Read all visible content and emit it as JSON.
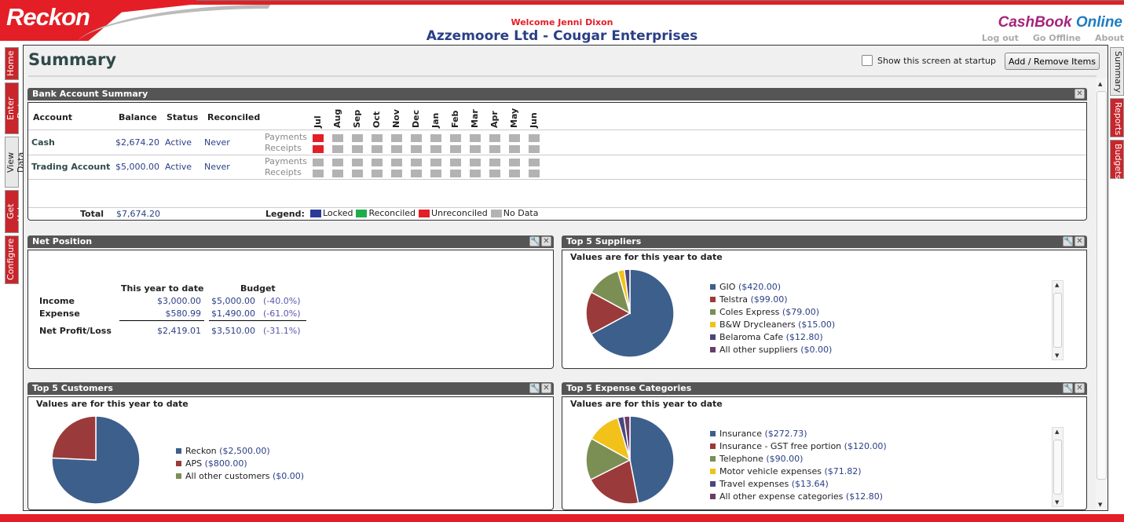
{
  "header": {
    "logo": "Reckon",
    "welcome": "Welcome Jenni Dixon",
    "company": "Azzemoore Ltd - Cougar Enterprises",
    "product": "CashBook Online",
    "links": [
      "Log out",
      "Go Offline",
      "About"
    ]
  },
  "left_tabs": [
    "Home",
    "Enter Data",
    "View Data",
    "Get Help",
    "Configure"
  ],
  "left_tabs_selected": "View Data",
  "right_tabs": [
    "Summary",
    "Reports",
    "Budgets"
  ],
  "right_tabs_selected": "Summary",
  "page": {
    "title": "Summary",
    "startup_label": "Show this screen at startup",
    "startup_checked": false,
    "add_remove": "Add / Remove Items"
  },
  "bank": {
    "title": "Bank Account Summary",
    "headers": [
      "Account",
      "Balance",
      "Status",
      "Reconciled"
    ],
    "months": [
      "Jul",
      "Aug",
      "Sep",
      "Oct",
      "Nov",
      "Dec",
      "Jan",
      "Feb",
      "Mar",
      "Apr",
      "May",
      "Jun"
    ],
    "row_labels": [
      "Payments",
      "Receipts"
    ],
    "accounts": [
      {
        "name": "Cash",
        "balance": "$2,674.20",
        "status": "Active",
        "reconciled": "Never",
        "payments": [
          "unreconciled",
          "nodata",
          "nodata",
          "nodata",
          "nodata",
          "nodata",
          "nodata",
          "nodata",
          "nodata",
          "nodata",
          "nodata",
          "nodata"
        ],
        "receipts": [
          "unreconciled",
          "nodata",
          "nodata",
          "nodata",
          "nodata",
          "nodata",
          "nodata",
          "nodata",
          "nodata",
          "nodata",
          "nodata",
          "nodata"
        ]
      },
      {
        "name": "Trading Account",
        "balance": "$5,000.00",
        "status": "Active",
        "reconciled": "Never",
        "payments": [
          "nodata",
          "nodata",
          "nodata",
          "nodata",
          "nodata",
          "nodata",
          "nodata",
          "nodata",
          "nodata",
          "nodata",
          "nodata",
          "nodata"
        ],
        "receipts": [
          "nodata",
          "nodata",
          "nodata",
          "nodata",
          "nodata",
          "nodata",
          "nodata",
          "nodata",
          "nodata",
          "nodata",
          "nodata",
          "nodata"
        ]
      }
    ],
    "total_label": "Total",
    "total": "$7,674.20",
    "legend_label": "Legend:",
    "legend": [
      {
        "key": "locked",
        "label": "Locked",
        "color": "#2b3a9a"
      },
      {
        "key": "reconciled",
        "label": "Reconciled",
        "color": "#1ead4b"
      },
      {
        "key": "unreconciled",
        "label": "Unreconciled",
        "color": "#e41e26"
      },
      {
        "key": "nodata",
        "label": "No Data",
        "color": "#b3b3b3"
      }
    ]
  },
  "net": {
    "title": "Net Position",
    "col1": "This year to date",
    "col2": "Budget",
    "rows": [
      {
        "label": "Income",
        "ytd": "$3,000.00",
        "budget": "$5,000.00",
        "pct": "(-40.0%)"
      },
      {
        "label": "Expense",
        "ytd": "$580.99",
        "budget": "$1,490.00",
        "pct": "(-61.0%)"
      },
      {
        "label": "Net Profit/Loss",
        "ytd": "$2,419.01",
        "budget": "$3,510.00",
        "pct": "(-31.1%)"
      }
    ]
  },
  "chart_data": [
    {
      "type": "pie",
      "panel_title": "Top 5 Suppliers",
      "subtitle": "Values are for this year to date",
      "legend_position": "right",
      "labels": [
        "GIO",
        "Telstra",
        "Coles Express",
        "B&W Drycleaners",
        "Belaroma Cafe",
        "All other suppliers"
      ],
      "display": [
        "($420.00)",
        "($99.00)",
        "($79.00)",
        "($15.00)",
        "($12.80)",
        "($0.00)"
      ],
      "values": [
        420,
        99,
        79,
        15,
        12.8,
        0
      ],
      "colors": [
        "#3d5f8c",
        "#9b3a3a",
        "#7b8f55",
        "#f2c21b",
        "#4a467f",
        "#6b3d67"
      ]
    },
    {
      "type": "pie",
      "panel_title": "Top 5 Customers",
      "subtitle": "Values are for this year to date",
      "legend_position": "right",
      "labels": [
        "Reckon",
        "APS",
        "All other customers"
      ],
      "display": [
        "($2,500.00)",
        "($800.00)",
        "($0.00)"
      ],
      "values": [
        2500,
        800,
        0
      ],
      "colors": [
        "#3d5f8c",
        "#9b3a3a",
        "#7b8f55"
      ]
    },
    {
      "type": "pie",
      "panel_title": "Top 5 Expense Categories",
      "subtitle": "Values are for this year to date",
      "legend_position": "right",
      "labels": [
        "Insurance",
        "Insurance - GST free portion",
        "Telephone",
        "Motor vehicle expenses",
        "Travel expenses",
        "All other expense categories"
      ],
      "display": [
        "($272.73)",
        "($120.00)",
        "($90.00)",
        "($71.82)",
        "($13.64)",
        "($12.80)"
      ],
      "values": [
        272.73,
        120,
        90,
        71.82,
        13.64,
        12.8
      ],
      "colors": [
        "#3d5f8c",
        "#9b3a3a",
        "#7b8f55",
        "#f2c21b",
        "#4a467f",
        "#6b3d67"
      ]
    }
  ]
}
